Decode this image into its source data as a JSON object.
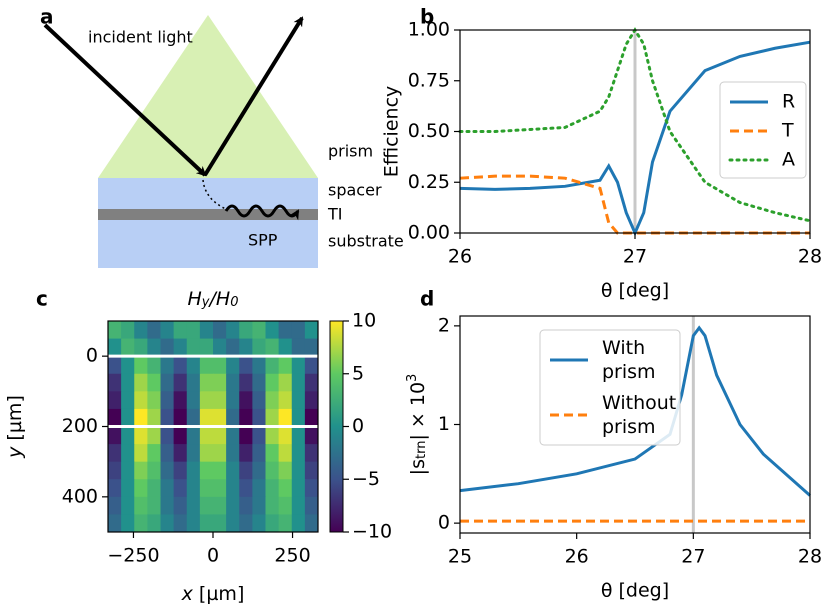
{
  "diagram": {
    "panel_label": "a",
    "incident": "incident light",
    "prism": "prism",
    "spacer": "spacer",
    "ti": "TI",
    "spp": "SPP",
    "substrate": "substrate"
  },
  "chart_data": [
    {
      "type": "line",
      "panel_label": "b",
      "xlabel": "θ [deg]",
      "ylabel": "Efficiency",
      "x": [
        26,
        26.2,
        26.4,
        26.6,
        26.8,
        26.85,
        26.9,
        26.95,
        27,
        27.05,
        27.1,
        27.2,
        27.4,
        27.6,
        27.8,
        28
      ],
      "series": [
        {
          "name": "R",
          "color": "#1f77b4",
          "style": "solid",
          "values": [
            0.22,
            0.215,
            0.22,
            0.23,
            0.26,
            0.33,
            0.25,
            0.1,
            0.0,
            0.1,
            0.35,
            0.6,
            0.8,
            0.87,
            0.91,
            0.94
          ]
        },
        {
          "name": "T",
          "color": "#ff7f0e",
          "style": "dashed",
          "values": [
            0.27,
            0.28,
            0.28,
            0.27,
            0.22,
            0.05,
            0,
            0,
            0,
            0,
            0,
            0,
            0,
            0,
            0,
            0
          ]
        },
        {
          "name": "A",
          "color": "#2ca02c",
          "style": "dotted",
          "values": [
            0.5,
            0.5,
            0.51,
            0.52,
            0.6,
            0.67,
            0.8,
            0.93,
            1.0,
            0.93,
            0.75,
            0.5,
            0.25,
            0.15,
            0.1,
            0.06
          ]
        }
      ],
      "vlines": [
        27
      ],
      "xlim": [
        26,
        28
      ],
      "xticks": [
        26,
        27,
        28
      ],
      "ylim": [
        0,
        1
      ],
      "yticks": [
        {
          "value": 0,
          "label": "0.00"
        },
        {
          "value": 0.25,
          "label": "0.25"
        },
        {
          "value": 0.5,
          "label": "0.50"
        },
        {
          "value": 0.75,
          "label": "0.75"
        },
        {
          "value": 1,
          "label": "1.00"
        }
      ],
      "legend": "center right"
    },
    {
      "type": "heatmap",
      "panel_label": "c",
      "title": {
        "main1": "H",
        "sub1": "y",
        "main2": "/H",
        "sub2": "0"
      },
      "xlabel": {
        "var": "x",
        "rest": " [µm]"
      },
      "ylabel": {
        "var": "y",
        "rest": " [µm]"
      },
      "xbins": [
        -330,
        -288.75,
        -247.5,
        -206.25,
        -165,
        -123.75,
        -82.5,
        -41.25,
        0,
        41.25,
        82.5,
        123.75,
        165,
        206.25,
        247.5,
        288.75,
        330
      ],
      "ybins": [
        -100,
        -50,
        0,
        50,
        100,
        150,
        200,
        250,
        300,
        350,
        400,
        450,
        500
      ],
      "z": [
        [
          3,
          2,
          -1,
          -3,
          -1,
          2,
          2,
          -1,
          -3,
          -1,
          2,
          3,
          0,
          -3,
          -3,
          0
        ],
        [
          0,
          3,
          2,
          -1,
          -3,
          -1,
          2,
          2,
          -1,
          -3,
          -1,
          2,
          3,
          0,
          -3,
          -3
        ],
        [
          -5,
          0,
          5,
          3,
          -2,
          -5,
          -1,
          4,
          4,
          -1,
          -5,
          -2,
          3,
          5,
          0,
          -5
        ],
        [
          -7,
          0,
          7,
          5,
          -3,
          -7,
          -2,
          6,
          6,
          -2,
          -7,
          -3,
          5,
          7,
          0,
          -7
        ],
        [
          -8,
          0,
          8,
          6,
          -4,
          -9,
          -2,
          7,
          7,
          -2,
          -9,
          -4,
          6,
          8,
          0,
          -8
        ],
        [
          -10,
          0,
          10,
          7,
          -5,
          -11,
          -3,
          9,
          9,
          -3,
          -11,
          -5,
          7,
          10,
          0,
          -10
        ],
        [
          -9,
          0,
          9,
          7,
          -5,
          -10,
          -2,
          8,
          8,
          -2,
          -10,
          -5,
          7,
          9,
          0,
          -9
        ],
        [
          -7,
          0,
          8,
          5,
          -4,
          -8,
          -2,
          7,
          7,
          -2,
          -8,
          -4,
          5,
          8,
          0,
          -7
        ],
        [
          -6,
          0,
          6,
          4,
          -3,
          -6,
          -1,
          5,
          5,
          -1,
          -6,
          -3,
          4,
          6,
          0,
          -6
        ],
        [
          -5,
          0,
          5,
          3,
          -2,
          -5,
          -1,
          4,
          4,
          -1,
          -5,
          -2,
          3,
          5,
          0,
          -5
        ],
        [
          -4,
          0,
          4,
          3,
          -2,
          -4,
          -1,
          3,
          3,
          -1,
          -4,
          -2,
          3,
          4,
          0,
          -4
        ],
        [
          -3,
          0,
          3,
          2,
          -1,
          -3,
          -1,
          2,
          2,
          -1,
          -3,
          -1,
          2,
          3,
          0,
          -3
        ]
      ],
      "hlines": [
        0,
        200
      ],
      "xlim": [
        -330,
        330
      ],
      "xticks": [
        {
          "value": -250,
          "label": "−250"
        },
        0,
        250
      ],
      "ylim": [
        -100,
        500
      ],
      "yticks": [
        0,
        200,
        400
      ],
      "clim": [
        -10,
        10
      ],
      "cticks": [
        {
          "value": -10,
          "label": "−10"
        },
        {
          "value": -5,
          "label": "−5"
        },
        0,
        5,
        10
      ],
      "colormap": "viridis"
    },
    {
      "type": "line",
      "panel_label": "d",
      "xlabel": "θ [deg]",
      "ylabel": {
        "open": "|s",
        "sub": "trn",
        "mid": "| × 10",
        "sup": "3"
      },
      "x": [
        25,
        25.5,
        26,
        26.5,
        26.8,
        26.9,
        27,
        27.05,
        27.1,
        27.2,
        27.4,
        27.6,
        28
      ],
      "series": [
        {
          "name": "With prism",
          "color": "#1f77b4",
          "style": "solid",
          "values": [
            0.33,
            0.4,
            0.5,
            0.65,
            0.9,
            1.3,
            1.9,
            1.98,
            1.9,
            1.5,
            1.0,
            0.7,
            0.28
          ]
        },
        {
          "name": "Without prism",
          "color": "#ff7f0e",
          "style": "dashed",
          "values": [
            0.02,
            0.02,
            0.02,
            0.02,
            0.02,
            0.02,
            0.02,
            0.02,
            0.02,
            0.02,
            0.02,
            0.02,
            0.02
          ]
        }
      ],
      "vlines": [
        27
      ],
      "xlim": [
        25,
        28
      ],
      "xticks": [
        25,
        26,
        27,
        28
      ],
      "ylim": [
        -0.1,
        2.1
      ],
      "yticks": [
        0,
        1,
        2
      ],
      "legend": "upper left"
    }
  ]
}
